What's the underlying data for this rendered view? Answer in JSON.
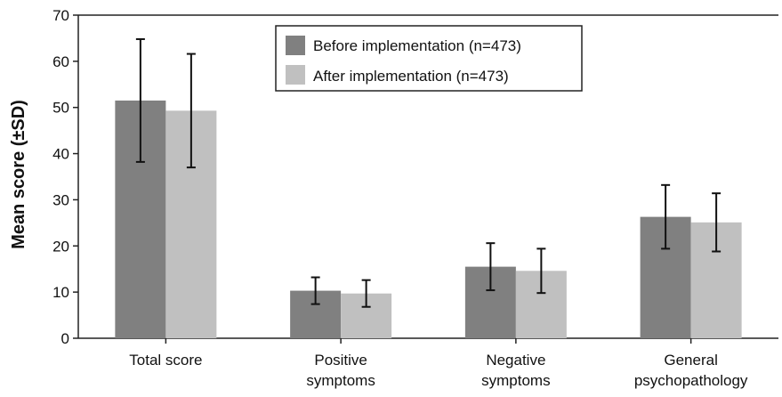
{
  "chart_data": {
    "type": "bar",
    "ylabel": "Mean score (±SD)",
    "ylim": [
      0,
      70
    ],
    "yticks": [
      0,
      10,
      20,
      30,
      40,
      50,
      60,
      70
    ],
    "grid": false,
    "legend_position": "top-center",
    "categories": [
      [
        "Total score"
      ],
      [
        "Positive",
        "symptoms"
      ],
      [
        "Negative",
        "symptoms"
      ],
      [
        "General",
        "psychopathology"
      ]
    ],
    "series": [
      {
        "name": "Before implementation (n=473)",
        "color": "#808080",
        "values": [
          51.5,
          10.3,
          15.5,
          26.3
        ],
        "sd": [
          13.3,
          2.9,
          5.1,
          6.9
        ]
      },
      {
        "name": "After implementation (n=473)",
        "color": "#c0c0c0",
        "values": [
          49.3,
          9.7,
          14.6,
          25.1
        ],
        "sd": [
          12.3,
          2.9,
          4.8,
          6.3
        ]
      }
    ]
  }
}
